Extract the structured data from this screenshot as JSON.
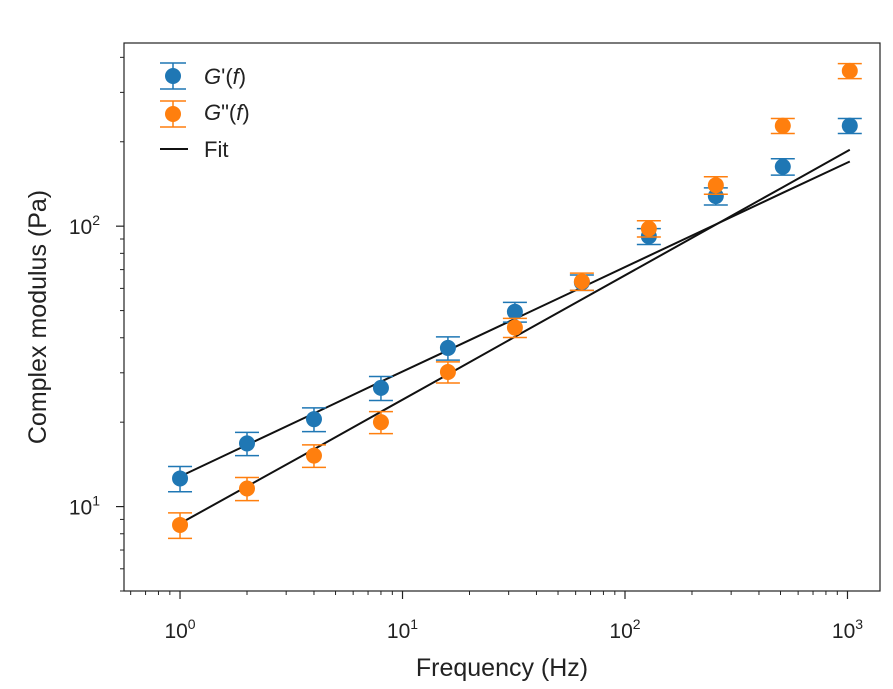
{
  "chart_data": {
    "type": "scatter",
    "xscale": "log",
    "yscale": "log",
    "xlabel": "Frequency (Hz)",
    "ylabel": "Complex modulus (Pa)",
    "xlim": [
      0.56,
      1400
    ],
    "ylim": [
      5,
      450
    ],
    "x_ticks": [
      {
        "value": 1,
        "base": "10",
        "exp": "0"
      },
      {
        "value": 10,
        "base": "10",
        "exp": "1"
      },
      {
        "value": 100,
        "base": "10",
        "exp": "2"
      },
      {
        "value": 1000,
        "base": "10",
        "exp": "3"
      }
    ],
    "y_ticks": [
      {
        "value": 10,
        "base": "10",
        "exp": "1"
      },
      {
        "value": 100,
        "base": "10",
        "exp": "2"
      }
    ],
    "series": [
      {
        "name": "G'(f)",
        "name_prefix": "G",
        "name_mid": "'(",
        "name_var": "f",
        "name_suffix": ")",
        "color": "#1f77b4",
        "x": [
          1,
          2,
          4,
          8,
          16,
          32,
          64,
          128,
          256,
          512,
          1024
        ],
        "y": [
          12.6,
          16.8,
          20.5,
          26.5,
          36.8,
          49.5,
          63.0,
          92.0,
          128.0,
          163.0,
          228.0
        ],
        "yerr": [
          1.3,
          1.6,
          2.0,
          2.6,
          3.5,
          4.0,
          4.0,
          6.0,
          9.0,
          11.0,
          14.0
        ],
        "fit": {
          "x": [
            1,
            2,
            4,
            8,
            16,
            32,
            64,
            128,
            256,
            512,
            1024
          ],
          "y": [
            12.8,
            16.6,
            21.5,
            27.9,
            36.1,
            46.7,
            60.5,
            78.4,
            101.5,
            131.5,
            170.0
          ]
        }
      },
      {
        "name": "G\"(f)",
        "name_prefix": "G",
        "name_mid": "\"(",
        "name_var": "f",
        "name_suffix": ")",
        "color": "#ff7f0e",
        "x": [
          1,
          2,
          4,
          8,
          16,
          32,
          64,
          128,
          256,
          512,
          1024
        ],
        "y": [
          8.6,
          11.6,
          15.2,
          20.0,
          30.2,
          43.5,
          63.5,
          98.0,
          140.0,
          228.0,
          358.0
        ],
        "yerr": [
          0.9,
          1.1,
          1.4,
          1.8,
          2.6,
          3.4,
          4.5,
          6.5,
          10.0,
          14.0,
          22.0
        ],
        "fit": {
          "x": [
            1,
            2,
            4,
            8,
            16,
            32,
            64,
            128,
            256,
            512,
            1024
          ],
          "y": [
            8.7,
            11.8,
            16.0,
            21.8,
            29.6,
            40.3,
            54.8,
            74.5,
            101.3,
            137.7,
            187.2
          ]
        }
      }
    ],
    "legend": {
      "position": "top-left",
      "fit_label": "Fit"
    }
  }
}
